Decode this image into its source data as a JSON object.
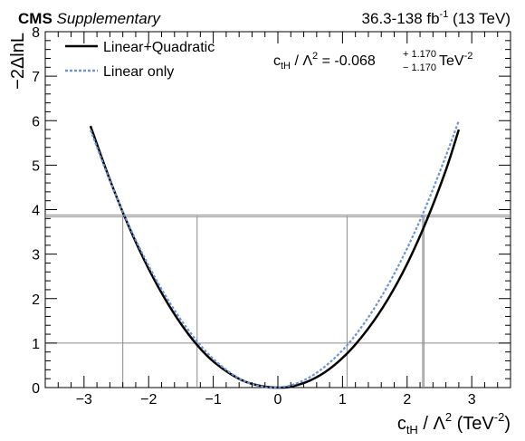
{
  "header": {
    "experiment": "CMS",
    "experiment_suffix": "Supplementary",
    "lumi_prefix": "36.3-138 fb",
    "lumi_exp": "-1",
    "lumi_suffix": " (13 TeV)"
  },
  "annotation": {
    "lhs": "c",
    "lhs_sub": "tH",
    "lhs_rest": " / Λ",
    "lhs_sup": "2",
    "eq": " = -0.068",
    "up": "+ 1.170",
    "down": "− 1.170",
    "unit": " TeV",
    "unit_sup": "-2"
  },
  "chart_data": {
    "type": "line",
    "title": "",
    "xlabel": {
      "main": "c",
      "sub": "tH",
      "mid": " / Λ",
      "sup": "2",
      "unit_open": " (TeV",
      "unit_sup": "-2",
      "unit_close": ")"
    },
    "ylabel": "−2ΔlnL",
    "xlim": [
      -3.6,
      3.6
    ],
    "ylim": [
      0,
      8
    ],
    "x_ticks": [
      -3,
      -2,
      -1,
      0,
      1,
      2,
      3
    ],
    "x_tick_labels": [
      "−3",
      "−2",
      "−1",
      "0",
      "1",
      "2",
      "3"
    ],
    "y_ticks": [
      0,
      1,
      2,
      3,
      4,
      5,
      6,
      7,
      8
    ],
    "y_tick_labels": [
      "0",
      "1",
      "2",
      "3",
      "4",
      "5",
      "6",
      "7",
      "8"
    ],
    "legend_position": "top-left",
    "series": [
      {
        "name": "Linear+Quadratic",
        "color": "#000000",
        "style": "solid",
        "x": [
          -2.9,
          -2.6,
          -2.3,
          -2.0,
          -1.7,
          -1.4,
          -1.1,
          -0.8,
          -0.5,
          -0.2,
          0.0,
          0.2,
          0.5,
          0.8,
          1.1,
          1.4,
          1.7,
          2.0,
          2.3,
          2.6,
          2.8
        ],
        "y": [
          5.88,
          4.67,
          3.6,
          2.67,
          1.88,
          1.23,
          0.72,
          0.37,
          0.13,
          0.02,
          0.0,
          0.02,
          0.16,
          0.42,
          0.81,
          1.33,
          1.98,
          2.78,
          3.75,
          4.89,
          5.8
        ]
      },
      {
        "name": "Linear only",
        "color": "#6f94d6",
        "style": "dotted",
        "x": [
          -2.9,
          -2.6,
          -2.3,
          -2.0,
          -1.7,
          -1.4,
          -1.1,
          -0.8,
          -0.5,
          -0.2,
          -0.07,
          0.2,
          0.5,
          0.8,
          1.1,
          1.4,
          1.7,
          2.0,
          2.3,
          2.6,
          2.8
        ],
        "y": [
          5.79,
          4.65,
          3.63,
          2.74,
          1.97,
          1.32,
          0.79,
          0.4,
          0.13,
          0.01,
          0.0,
          0.05,
          0.24,
          0.56,
          1.0,
          1.58,
          2.29,
          3.13,
          4.1,
          5.21,
          6.0
        ]
      }
    ],
    "reference_lines": {
      "horizontal_y": [
        1.0,
        3.84,
        3.88
      ],
      "vertical_x": [
        -2.4,
        -1.25,
        1.07,
        2.24,
        2.26
      ]
    }
  }
}
